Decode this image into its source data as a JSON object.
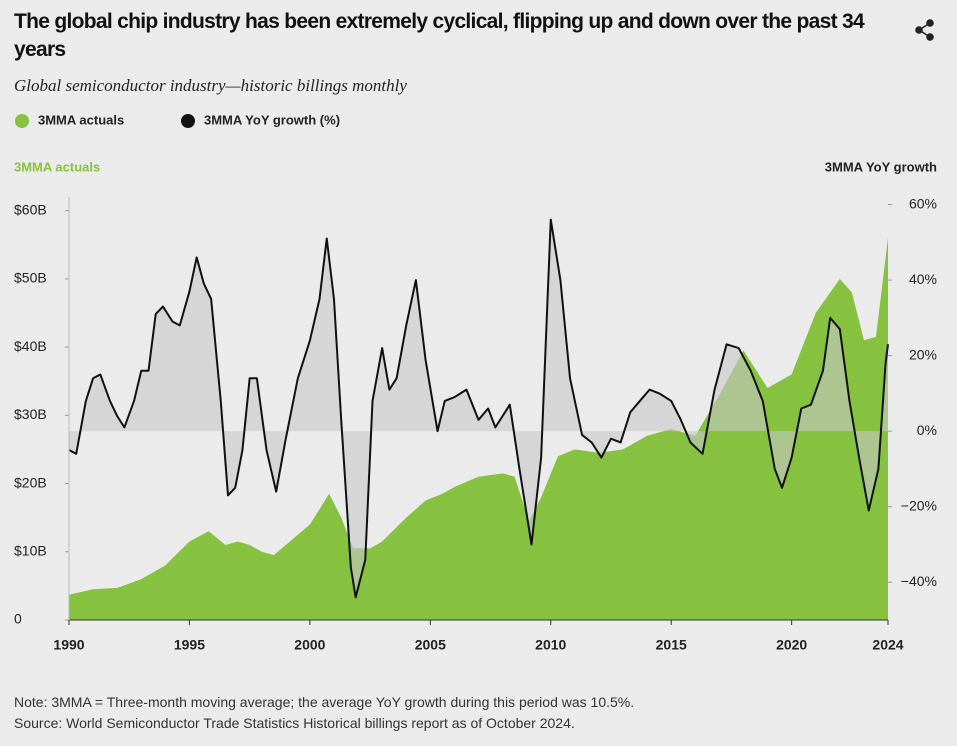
{
  "chart_data": {
    "type": "combo",
    "title": "The global chip industry has been extremely cyclical, flipping up and down over the past 34 years",
    "subtitle": "Global semiconductor industry—historic billings monthly",
    "ylabel": "3MMA actuals",
    "y2label": "3MMA YoY growth",
    "notes": [
      "Note: 3MMA = Three-month moving average; the average YoY growth during this period was 10.5%.",
      "Source: World Semiconductor Trade Statistics Historical billings report as of October 2024."
    ],
    "xlim": [
      1990,
      2024
    ],
    "xticks": [
      1990,
      1995,
      2000,
      2005,
      2010,
      2015,
      2020,
      2024
    ],
    "ylim": [
      0,
      62
    ],
    "yticks": [
      0,
      {
        "value": 10,
        "label": "$10B"
      },
      {
        "value": 20,
        "label": "$20B"
      },
      {
        "value": 30,
        "label": "$30B"
      },
      {
        "value": 40,
        "label": "$40B"
      },
      {
        "value": 50,
        "label": "$50B"
      },
      {
        "value": 60,
        "label": "$60B"
      }
    ],
    "y2lim": [
      -50,
      62
    ],
    "y2ticks": [
      {
        "value": -40,
        "label": "−40%"
      },
      {
        "value": -20,
        "label": "−20%"
      },
      {
        "value": 0,
        "label": "0%"
      },
      {
        "value": 20,
        "label": "20%"
      },
      {
        "value": 40,
        "label": "40%"
      },
      {
        "value": 60,
        "label": "60%"
      }
    ],
    "series": [
      {
        "name": "3MMA actuals",
        "type": "area",
        "color": "#86c13f",
        "x": [
          1990,
          1991,
          1992,
          1993,
          1994,
          1995,
          1995.8,
          1996.5,
          1997,
          1997.5,
          1998,
          1998.5,
          1999,
          2000,
          2000.8,
          2001.3,
          2001.8,
          2002.5,
          2003,
          2004,
          2004.8,
          2005.5,
          2006,
          2007,
          2008,
          2008.5,
          2009.1,
          2009.6,
          2010.3,
          2011,
          2012,
          2013,
          2014,
          2015,
          2016,
          2017,
          2018,
          2019,
          2020,
          2021,
          2022,
          2022.5,
          2023,
          2023.5,
          2024
        ],
        "values": [
          3.7,
          4.5,
          4.7,
          6,
          8,
          11.5,
          13,
          11,
          11.5,
          11,
          10,
          9.5,
          11,
          14,
          18.5,
          15,
          10.5,
          10.5,
          11.5,
          15,
          17.5,
          18.5,
          19.5,
          21,
          21.5,
          21,
          14.5,
          18,
          24,
          25,
          24.5,
          25,
          27,
          28,
          27,
          33,
          39.5,
          34,
          36,
          45,
          50,
          48,
          41,
          41.5,
          56
        ]
      },
      {
        "name": "3MMA YoY growth (%)",
        "type": "line",
        "axis": "y2",
        "color": "#111111",
        "x": [
          1990,
          1990.3,
          1990.7,
          1991,
          1991.3,
          1991.7,
          1992,
          1992.3,
          1992.7,
          1993,
          1993.3,
          1993.6,
          1993.9,
          1994.3,
          1994.6,
          1995,
          1995.3,
          1995.6,
          1995.9,
          1996.3,
          1996.6,
          1996.9,
          1997.2,
          1997.5,
          1997.8,
          1998.2,
          1998.6,
          1999,
          1999.5,
          2000,
          2000.4,
          2000.7,
          2001,
          2001.3,
          2001.7,
          2001.9,
          2002.3,
          2002.6,
          2003,
          2003.3,
          2003.6,
          2004,
          2004.4,
          2004.8,
          2005.3,
          2005.6,
          2006,
          2006.5,
          2007,
          2007.4,
          2007.7,
          2008.3,
          2008.7,
          2009.2,
          2009.6,
          2010,
          2010.4,
          2010.8,
          2011.3,
          2011.7,
          2012.1,
          2012.5,
          2012.9,
          2013.3,
          2013.7,
          2014.1,
          2014.5,
          2015,
          2015.4,
          2015.8,
          2016.3,
          2016.8,
          2017.3,
          2017.8,
          2018.3,
          2018.8,
          2019.3,
          2019.6,
          2020,
          2020.4,
          2020.8,
          2021.3,
          2021.6,
          2022,
          2022.4,
          2022.8,
          2023.2,
          2023.6,
          2023.9,
          2024
        ],
        "values": [
          -5,
          -6,
          8,
          14,
          15,
          8,
          4,
          1,
          8,
          16,
          16,
          31,
          33,
          29,
          28,
          37,
          46,
          39,
          35,
          8,
          -17,
          -15,
          -5,
          14,
          14,
          -5,
          -16,
          -2,
          14,
          24,
          35,
          51,
          35,
          3,
          -36,
          -44,
          -34,
          8,
          22,
          11,
          14,
          28,
          40,
          19,
          0,
          8,
          9,
          11,
          3,
          6,
          1,
          7,
          -10,
          -30,
          -7,
          56,
          40,
          14,
          -1,
          -3,
          -7,
          -2,
          -3,
          5,
          8,
          11,
          10,
          8,
          3,
          -3,
          -6,
          11,
          23,
          22,
          16,
          8,
          -10,
          -15,
          -7,
          6,
          7,
          16,
          30,
          27,
          8,
          -7,
          -21,
          -10,
          18,
          23
        ]
      }
    ]
  }
}
